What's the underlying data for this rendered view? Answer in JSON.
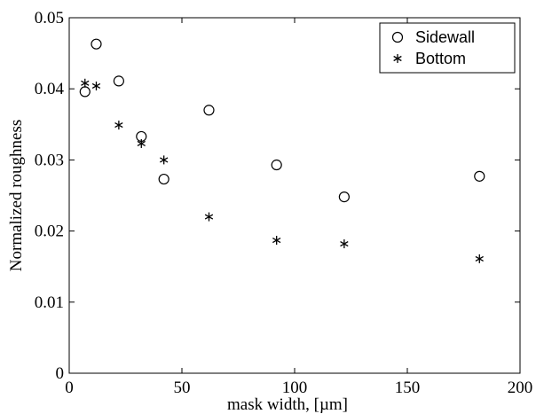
{
  "chart_data": {
    "type": "scatter",
    "xlabel": "mask width,   [µm]",
    "ylabel": "Normalized roughness",
    "xlim": [
      0,
      200
    ],
    "ylim": [
      0,
      0.05
    ],
    "x_ticks": [
      0,
      50,
      100,
      150,
      200
    ],
    "y_ticks": [
      0,
      0.01,
      0.02,
      0.03,
      0.04,
      0.05
    ],
    "x_tick_labels": [
      "0",
      "50",
      "100",
      "150",
      "200"
    ],
    "y_tick_labels": [
      "0",
      "0.01",
      "0.02",
      "0.03",
      "0.04",
      "0.05"
    ],
    "grid": false,
    "legend_position": "top-right",
    "series": [
      {
        "name": "Sidewall",
        "marker": "circle",
        "color": "#000000",
        "points": [
          {
            "x": 7,
            "y": 0.0396
          },
          {
            "x": 12,
            "y": 0.0463
          },
          {
            "x": 22,
            "y": 0.0411
          },
          {
            "x": 32,
            "y": 0.0333
          },
          {
            "x": 42,
            "y": 0.0273
          },
          {
            "x": 62,
            "y": 0.037
          },
          {
            "x": 92,
            "y": 0.0293
          },
          {
            "x": 122,
            "y": 0.0248
          },
          {
            "x": 182,
            "y": 0.0277
          }
        ]
      },
      {
        "name": "Bottom",
        "marker": "asterisk",
        "color": "#000000",
        "points": [
          {
            "x": 7,
            "y": 0.0408
          },
          {
            "x": 12,
            "y": 0.0404
          },
          {
            "x": 22,
            "y": 0.0349
          },
          {
            "x": 32,
            "y": 0.0323
          },
          {
            "x": 42,
            "y": 0.03
          },
          {
            "x": 62,
            "y": 0.022
          },
          {
            "x": 92,
            "y": 0.0187
          },
          {
            "x": 122,
            "y": 0.0182
          },
          {
            "x": 182,
            "y": 0.0161
          }
        ]
      }
    ]
  }
}
